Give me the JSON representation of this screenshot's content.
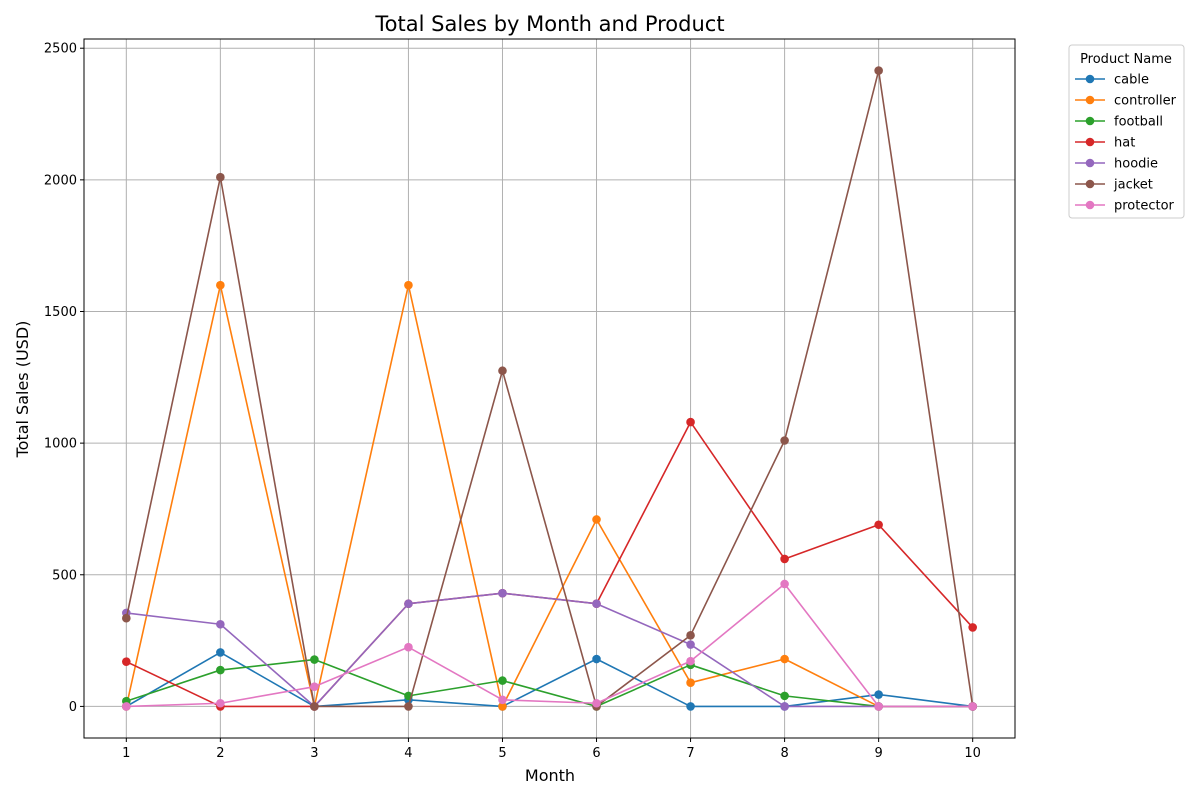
{
  "chart_data": {
    "type": "line",
    "title": "Total Sales by Month and Product",
    "xlabel": "Month",
    "ylabel": "Total Sales (USD)",
    "x": [
      1,
      2,
      3,
      4,
      5,
      6,
      7,
      8,
      9,
      10
    ],
    "x_ticks": [
      "1",
      "2",
      "3",
      "4",
      "5",
      "6",
      "7",
      "8",
      "9",
      "10"
    ],
    "y_ticks": [
      "0",
      "500",
      "1000",
      "1500",
      "2000",
      "2500"
    ],
    "xlim": [
      0.55,
      10.45
    ],
    "ylim": [
      -120,
      2535
    ],
    "grid": true,
    "legend": {
      "title": "Product Name",
      "placement": "outside-top-right"
    },
    "series": [
      {
        "name": "cable",
        "color": "#1f77b4",
        "values": [
          0,
          205,
          0,
          25,
          0,
          180,
          0,
          0,
          45,
          0
        ]
      },
      {
        "name": "controller",
        "color": "#ff7f0e",
        "values": [
          0,
          1600,
          0,
          1600,
          0,
          710,
          90,
          180,
          0,
          0
        ]
      },
      {
        "name": "football",
        "color": "#2ca02c",
        "values": [
          20,
          138,
          178,
          40,
          98,
          0,
          158,
          40,
          0,
          0
        ]
      },
      {
        "name": "hat",
        "color": "#d62728",
        "values": [
          170,
          0,
          0,
          390,
          430,
          390,
          1080,
          560,
          690,
          300
        ]
      },
      {
        "name": "hoodie",
        "color": "#9467bd",
        "values": [
          355,
          312,
          0,
          390,
          430,
          390,
          235,
          0,
          0,
          0
        ]
      },
      {
        "name": "jacket",
        "color": "#8c564b",
        "values": [
          335,
          2010,
          0,
          0,
          1275,
          0,
          270,
          1010,
          2415,
          0
        ]
      },
      {
        "name": "protector",
        "color": "#e377c2",
        "values": [
          0,
          12,
          75,
          225,
          25,
          12,
          172,
          465,
          0,
          0
        ]
      }
    ]
  }
}
